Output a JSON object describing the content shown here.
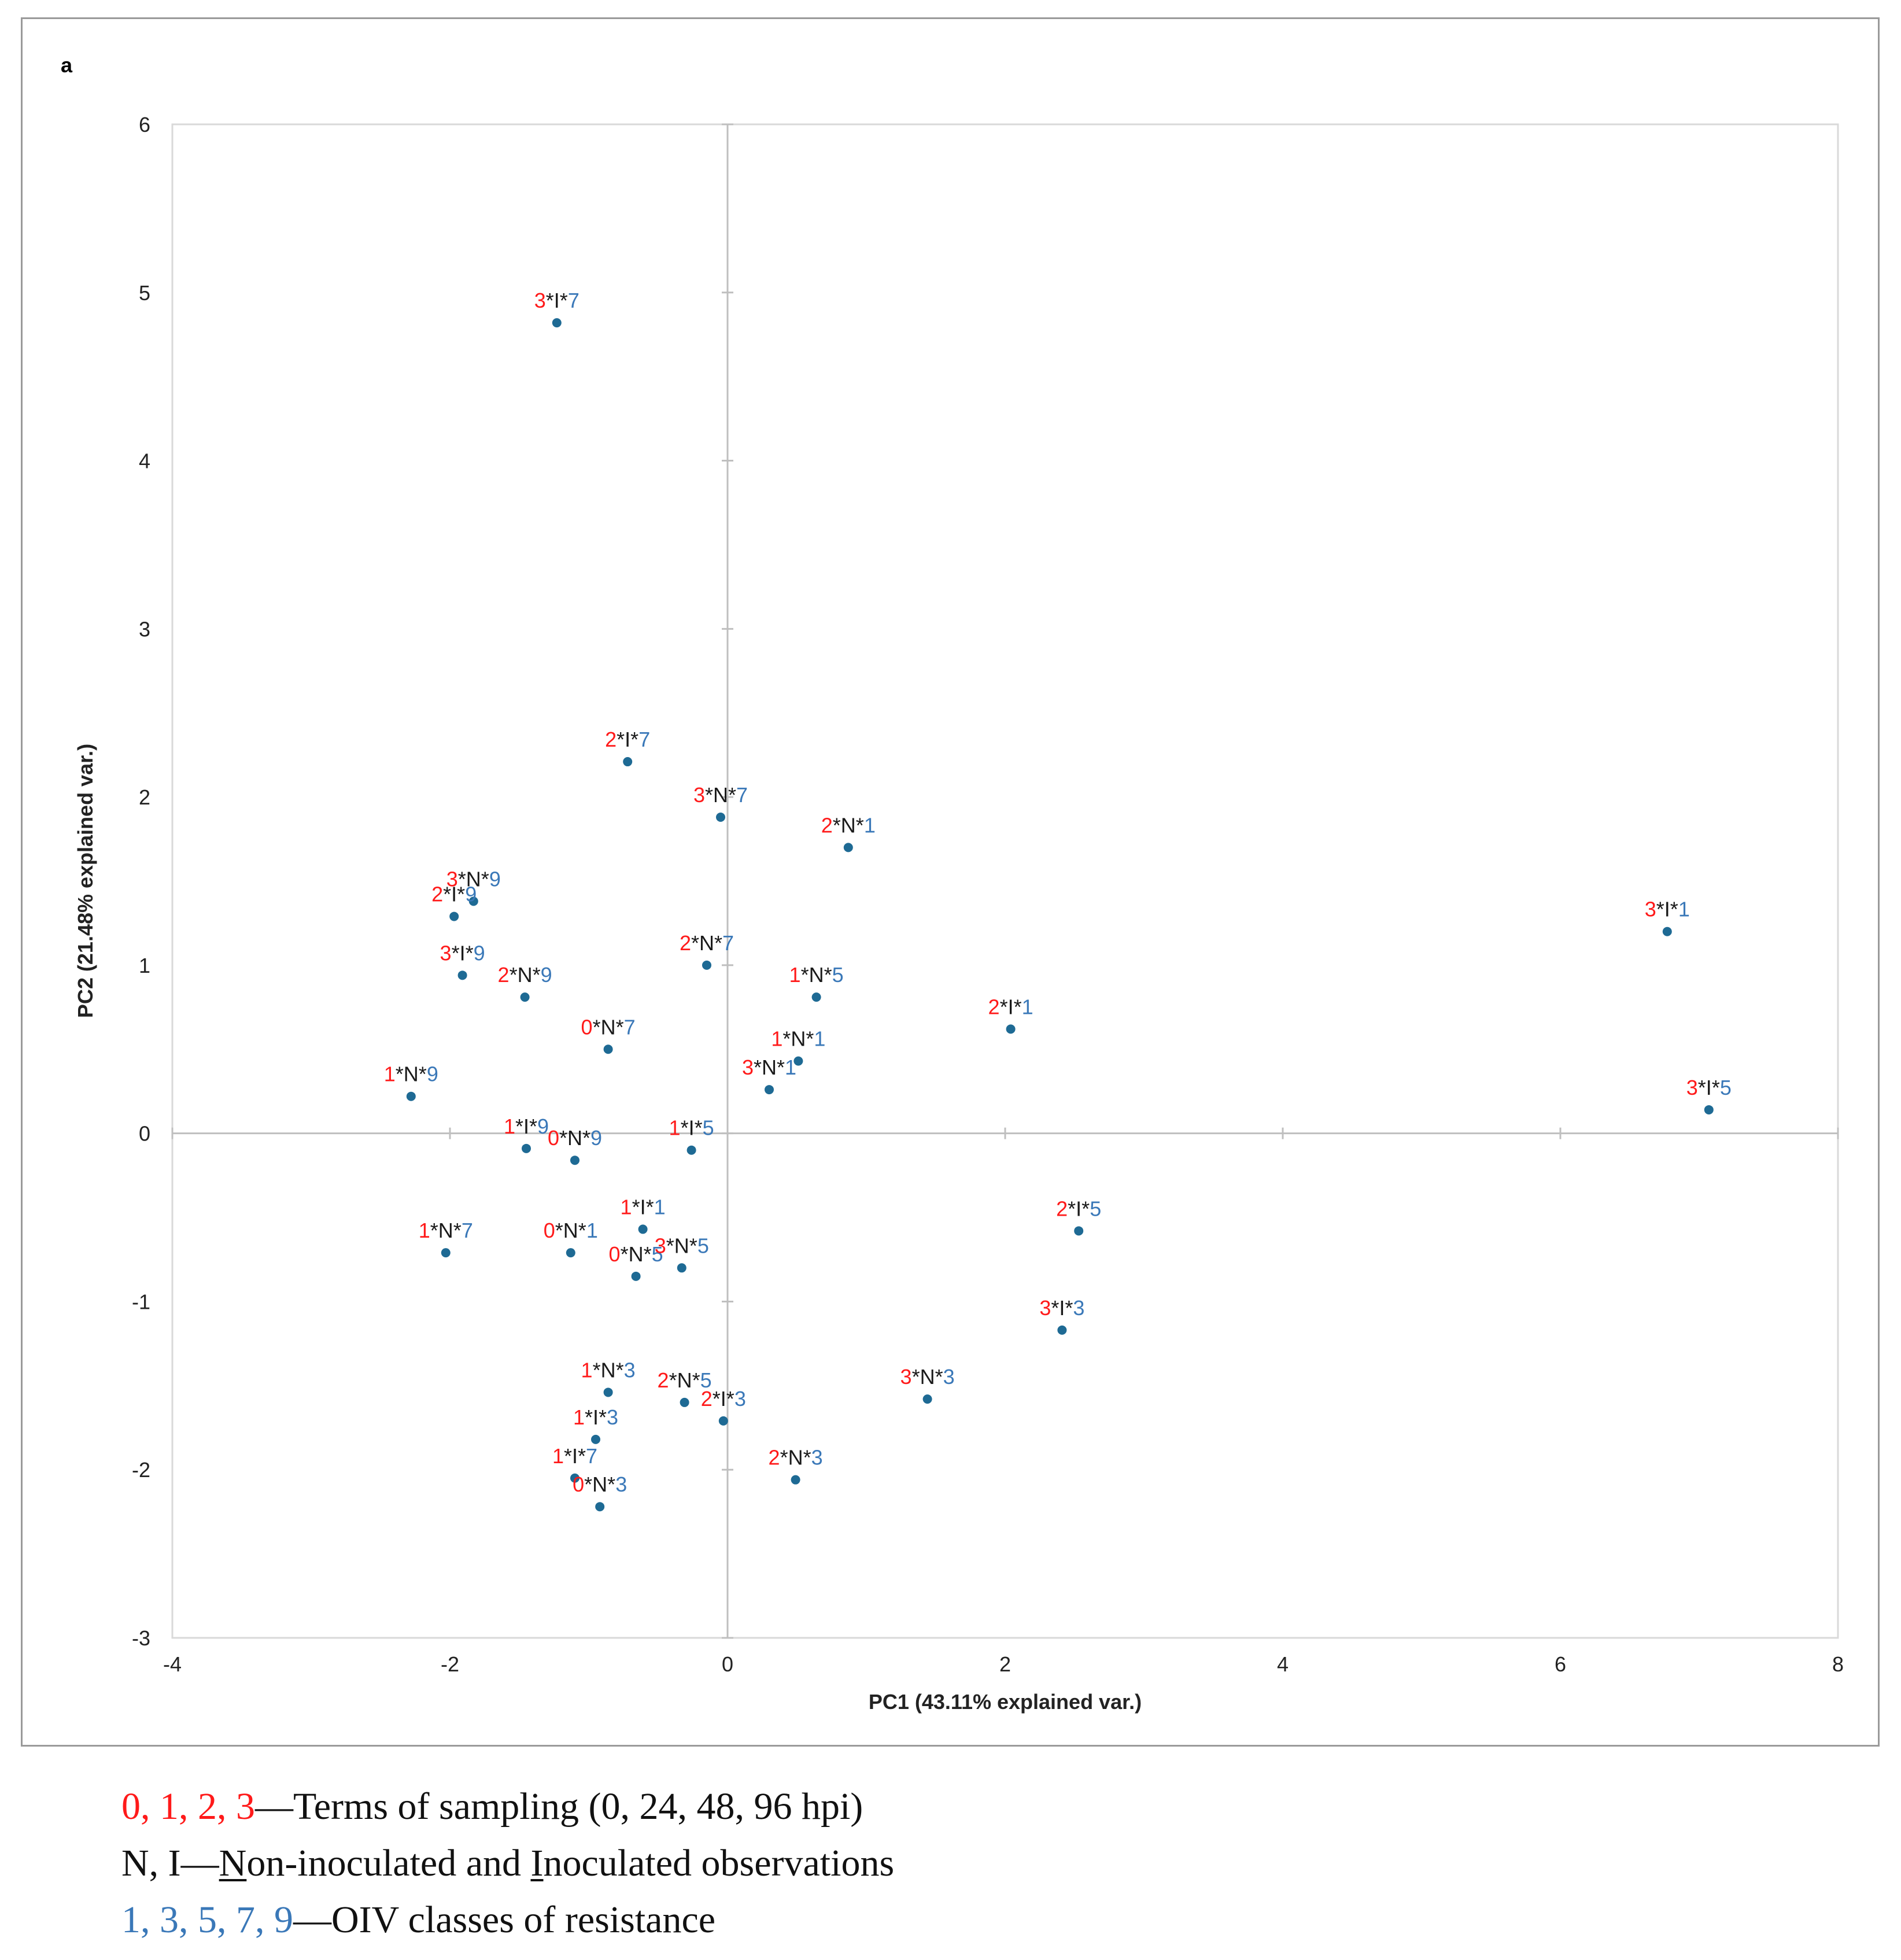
{
  "panel_label": "a",
  "colors": {
    "term": "#ff1a1a",
    "obs": "#1a1a1a",
    "oiv": "#3a78b8",
    "point": "#1e6a94",
    "axis": "#bfbfbf",
    "frame": "#d9d9d9"
  },
  "chart_data": {
    "type": "scatter",
    "title": "",
    "xlabel": "PC1 (43.11% explained var.)",
    "ylabel": "PC2 (21.48% explained var.)",
    "xlim": [
      -4,
      8
    ],
    "ylim": [
      -3,
      6
    ],
    "xticks": [
      -4,
      -2,
      0,
      2,
      4,
      6,
      8
    ],
    "yticks": [
      -3,
      -2,
      -1,
      0,
      1,
      2,
      3,
      4,
      5,
      6
    ],
    "points": [
      {
        "term": "3",
        "obs": "I",
        "oiv": "7",
        "x": -1.23,
        "y": 4.82
      },
      {
        "term": "2",
        "obs": "I",
        "oiv": "7",
        "x": -0.72,
        "y": 2.21
      },
      {
        "term": "3",
        "obs": "N",
        "oiv": "7",
        "x": -0.05,
        "y": 1.88
      },
      {
        "term": "2",
        "obs": "N",
        "oiv": "1",
        "x": 0.87,
        "y": 1.7
      },
      {
        "term": "3",
        "obs": "N",
        "oiv": "9",
        "x": -1.83,
        "y": 1.38
      },
      {
        "term": "2",
        "obs": "I",
        "oiv": "9",
        "x": -1.97,
        "y": 1.29
      },
      {
        "term": "3",
        "obs": "I",
        "oiv": "9",
        "x": -1.91,
        "y": 0.94
      },
      {
        "term": "2",
        "obs": "N",
        "oiv": "9",
        "x": -1.46,
        "y": 0.81
      },
      {
        "term": "2",
        "obs": "N",
        "oiv": "7",
        "x": -0.15,
        "y": 1.0
      },
      {
        "term": "1",
        "obs": "N",
        "oiv": "5",
        "x": 0.64,
        "y": 0.81
      },
      {
        "term": "2",
        "obs": "I",
        "oiv": "1",
        "x": 2.04,
        "y": 0.62
      },
      {
        "term": "3",
        "obs": "I",
        "oiv": "1",
        "x": 6.77,
        "y": 1.2
      },
      {
        "term": "0",
        "obs": "N",
        "oiv": "7",
        "x": -0.86,
        "y": 0.5
      },
      {
        "term": "1",
        "obs": "N",
        "oiv": "1",
        "x": 0.51,
        "y": 0.43
      },
      {
        "term": "3",
        "obs": "N",
        "oiv": "1",
        "x": 0.3,
        "y": 0.26
      },
      {
        "term": "1",
        "obs": "N",
        "oiv": "9",
        "x": -2.28,
        "y": 0.22
      },
      {
        "term": "3",
        "obs": "I",
        "oiv": "5",
        "x": 7.07,
        "y": 0.14
      },
      {
        "term": "1",
        "obs": "I",
        "oiv": "9",
        "x": -1.45,
        "y": -0.09
      },
      {
        "term": "0",
        "obs": "N",
        "oiv": "9",
        "x": -1.1,
        "y": -0.16
      },
      {
        "term": "1",
        "obs": "I",
        "oiv": "5",
        "x": -0.26,
        "y": -0.1
      },
      {
        "term": "1",
        "obs": "I",
        "oiv": "1",
        "x": -0.61,
        "y": -0.57
      },
      {
        "term": "2",
        "obs": "I",
        "oiv": "5",
        "x": 2.53,
        "y": -0.58
      },
      {
        "term": "1",
        "obs": "N",
        "oiv": "7",
        "x": -2.03,
        "y": -0.71
      },
      {
        "term": "0",
        "obs": "N",
        "oiv": "1",
        "x": -1.13,
        "y": -0.71
      },
      {
        "term": "0",
        "obs": "N",
        "oiv": "5",
        "x": -0.66,
        "y": -0.85
      },
      {
        "term": "3",
        "obs": "N",
        "oiv": "5",
        "x": -0.33,
        "y": -0.8
      },
      {
        "term": "3",
        "obs": "I",
        "oiv": "3",
        "x": 2.41,
        "y": -1.17
      },
      {
        "term": "1",
        "obs": "N",
        "oiv": "3",
        "x": -0.86,
        "y": -1.54
      },
      {
        "term": "2",
        "obs": "N",
        "oiv": "5",
        "x": -0.31,
        "y": -1.6
      },
      {
        "term": "3",
        "obs": "N",
        "oiv": "3",
        "x": 1.44,
        "y": -1.58
      },
      {
        "term": "2",
        "obs": "I",
        "oiv": "3",
        "x": -0.03,
        "y": -1.71
      },
      {
        "term": "1",
        "obs": "I",
        "oiv": "3",
        "x": -0.95,
        "y": -1.82
      },
      {
        "term": "2",
        "obs": "N",
        "oiv": "3",
        "x": 0.49,
        "y": -2.06
      },
      {
        "term": "1",
        "obs": "I",
        "oiv": "7",
        "x": -1.1,
        "y": -2.05
      },
      {
        "term": "0",
        "obs": "N",
        "oiv": "3",
        "x": -0.92,
        "y": -2.22
      }
    ]
  },
  "legend": {
    "terms_values": "0, 1, 2, 3",
    "terms_text": "—Terms of sampling (0, 24, 48, 96 hpi)",
    "obs_values": "N, I",
    "obs_dash": "—",
    "obs_n_letter": "N",
    "obs_mid": "on-inoculated and ",
    "obs_i_letter": "I",
    "obs_end": "noculated observations",
    "oiv_values": "1, 3, 5, 7, 9",
    "oiv_text": "—OIV classes of resistance"
  }
}
